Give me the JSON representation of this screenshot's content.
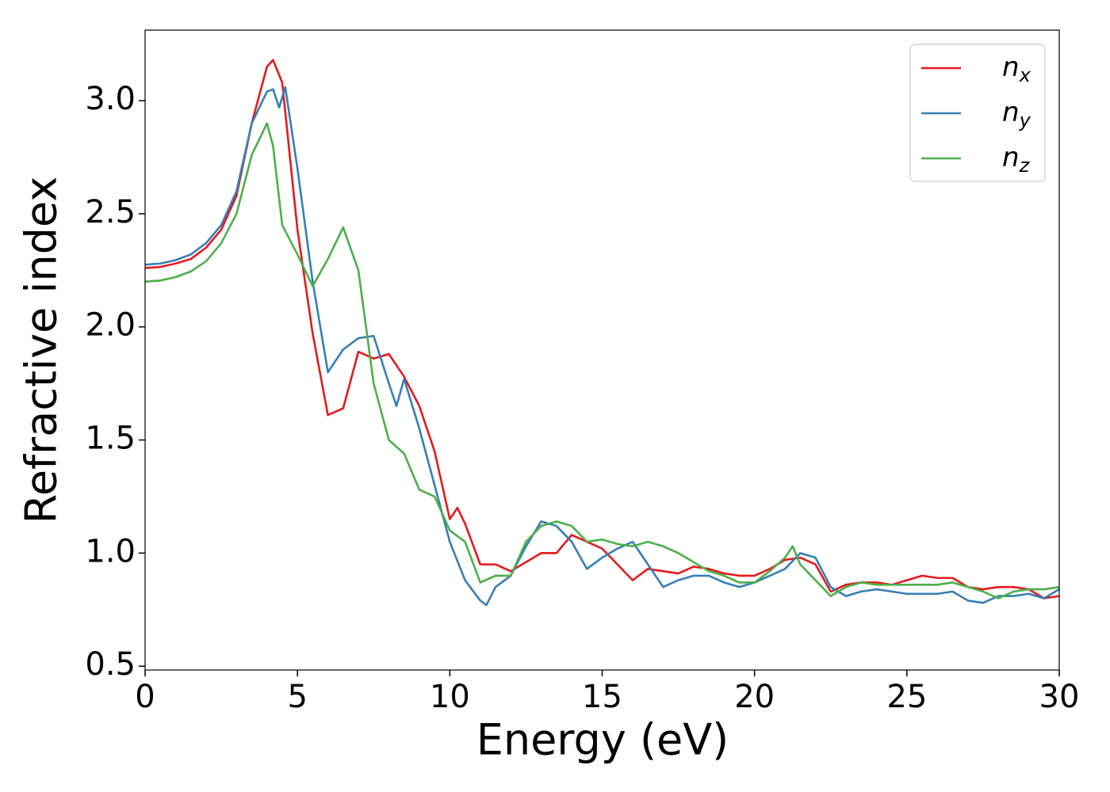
{
  "chart_data": {
    "type": "line",
    "xlabel": "Energy (eV)",
    "ylabel": "Refractive index",
    "xlim": [
      0,
      30
    ],
    "ylim": [
      0.483,
      3.312
    ],
    "xticks": [
      0,
      5,
      10,
      15,
      20,
      25,
      30
    ],
    "yticks": [
      {
        "value": 0.5,
        "label": "0.5"
      },
      {
        "value": 1.0,
        "label": "1.0"
      },
      {
        "value": 1.5,
        "label": "1.5"
      },
      {
        "value": 2.0,
        "label": "2.0"
      },
      {
        "value": 2.5,
        "label": "2.5"
      },
      {
        "value": 3.0,
        "label": "3.0"
      }
    ],
    "legend": "upper right",
    "series": [
      {
        "name": "n_x",
        "color": "#e41a1c",
        "x": [
          0,
          0.5,
          1,
          1.5,
          2,
          2.5,
          3,
          3.5,
          4,
          4.2,
          4.5,
          5,
          5.5,
          6,
          6.5,
          7,
          7.5,
          8,
          8.5,
          9,
          9.5,
          10,
          10.25,
          10.5,
          11,
          11.5,
          12,
          12.5,
          13,
          13.5,
          14,
          14.5,
          15,
          15.5,
          16,
          16.5,
          17,
          17.5,
          18,
          18.5,
          19,
          19.5,
          20,
          20.5,
          21,
          21.5,
          22,
          22.5,
          23,
          23.5,
          24,
          24.5,
          25,
          25.5,
          26,
          26.5,
          27,
          27.5,
          28,
          28.5,
          29,
          29.5,
          30
        ],
        "values": [
          2.26,
          2.265,
          2.28,
          2.3,
          2.35,
          2.43,
          2.58,
          2.9,
          3.15,
          3.18,
          3.08,
          2.43,
          1.97,
          1.61,
          1.64,
          1.89,
          1.86,
          1.88,
          1.78,
          1.65,
          1.45,
          1.15,
          1.2,
          1.13,
          0.95,
          0.95,
          0.92,
          0.96,
          1.0,
          1.0,
          1.08,
          1.05,
          1.02,
          0.95,
          0.88,
          0.93,
          0.92,
          0.91,
          0.94,
          0.93,
          0.91,
          0.9,
          0.9,
          0.93,
          0.97,
          0.98,
          0.95,
          0.83,
          0.86,
          0.87,
          0.87,
          0.86,
          0.88,
          0.9,
          0.89,
          0.89,
          0.85,
          0.84,
          0.85,
          0.85,
          0.84,
          0.8,
          0.81
        ]
      },
      {
        "name": "n_y",
        "color": "#377eb8",
        "x": [
          0,
          0.5,
          1,
          1.5,
          2,
          2.5,
          3,
          3.5,
          4,
          4.2,
          4.4,
          4.6,
          5,
          5.5,
          6,
          6.5,
          7,
          7.5,
          8,
          8.25,
          8.5,
          9,
          9.5,
          10,
          10.5,
          11,
          11.2,
          11.5,
          12,
          12.5,
          13,
          13.5,
          14,
          14.5,
          15,
          15.5,
          16,
          16.5,
          17,
          17.5,
          18,
          18.5,
          19,
          19.5,
          20,
          20.5,
          21,
          21.5,
          22,
          22.5,
          23,
          23.5,
          24,
          24.5,
          25,
          25.5,
          26,
          26.5,
          27,
          27.5,
          28,
          28.5,
          29,
          29.5,
          30
        ],
        "values": [
          2.275,
          2.28,
          2.295,
          2.32,
          2.37,
          2.45,
          2.6,
          2.9,
          3.04,
          3.05,
          2.97,
          3.06,
          2.7,
          2.2,
          1.8,
          1.9,
          1.95,
          1.96,
          1.75,
          1.65,
          1.77,
          1.55,
          1.3,
          1.05,
          0.88,
          0.79,
          0.77,
          0.85,
          0.9,
          1.03,
          1.14,
          1.12,
          1.05,
          0.93,
          0.98,
          1.02,
          1.05,
          0.95,
          0.85,
          0.88,
          0.9,
          0.9,
          0.87,
          0.85,
          0.87,
          0.9,
          0.93,
          1.0,
          0.98,
          0.85,
          0.81,
          0.83,
          0.84,
          0.83,
          0.82,
          0.82,
          0.82,
          0.83,
          0.79,
          0.78,
          0.81,
          0.81,
          0.82,
          0.8,
          0.84
        ]
      },
      {
        "name": "n_z",
        "color": "#4daf4a",
        "x": [
          0,
          0.5,
          1,
          1.5,
          2,
          2.5,
          3,
          3.5,
          4,
          4.2,
          4.5,
          5,
          5.5,
          6,
          6.5,
          7,
          7.5,
          8,
          8.5,
          9,
          9.5,
          10,
          10.5,
          11,
          11.5,
          12,
          12.5,
          13,
          13.5,
          14,
          14.5,
          15,
          15.5,
          16,
          16.5,
          17,
          17.5,
          18,
          18.5,
          19,
          19.5,
          20,
          20.5,
          21,
          21.25,
          21.5,
          22,
          22.5,
          23,
          23.5,
          24,
          24.5,
          25,
          25.5,
          26,
          26.5,
          27,
          27.5,
          28,
          28.5,
          29,
          29.5,
          30
        ],
        "values": [
          2.2,
          2.205,
          2.22,
          2.245,
          2.29,
          2.37,
          2.5,
          2.76,
          2.9,
          2.8,
          2.45,
          2.32,
          2.18,
          2.3,
          2.44,
          2.25,
          1.75,
          1.5,
          1.44,
          1.28,
          1.25,
          1.1,
          1.05,
          0.87,
          0.9,
          0.9,
          1.05,
          1.12,
          1.14,
          1.12,
          1.05,
          1.06,
          1.04,
          1.03,
          1.05,
          1.03,
          1.0,
          0.96,
          0.92,
          0.9,
          0.87,
          0.87,
          0.92,
          0.98,
          1.03,
          0.95,
          0.88,
          0.81,
          0.85,
          0.87,
          0.86,
          0.86,
          0.86,
          0.86,
          0.86,
          0.87,
          0.85,
          0.83,
          0.8,
          0.83,
          0.84,
          0.84,
          0.85
        ]
      }
    ]
  }
}
